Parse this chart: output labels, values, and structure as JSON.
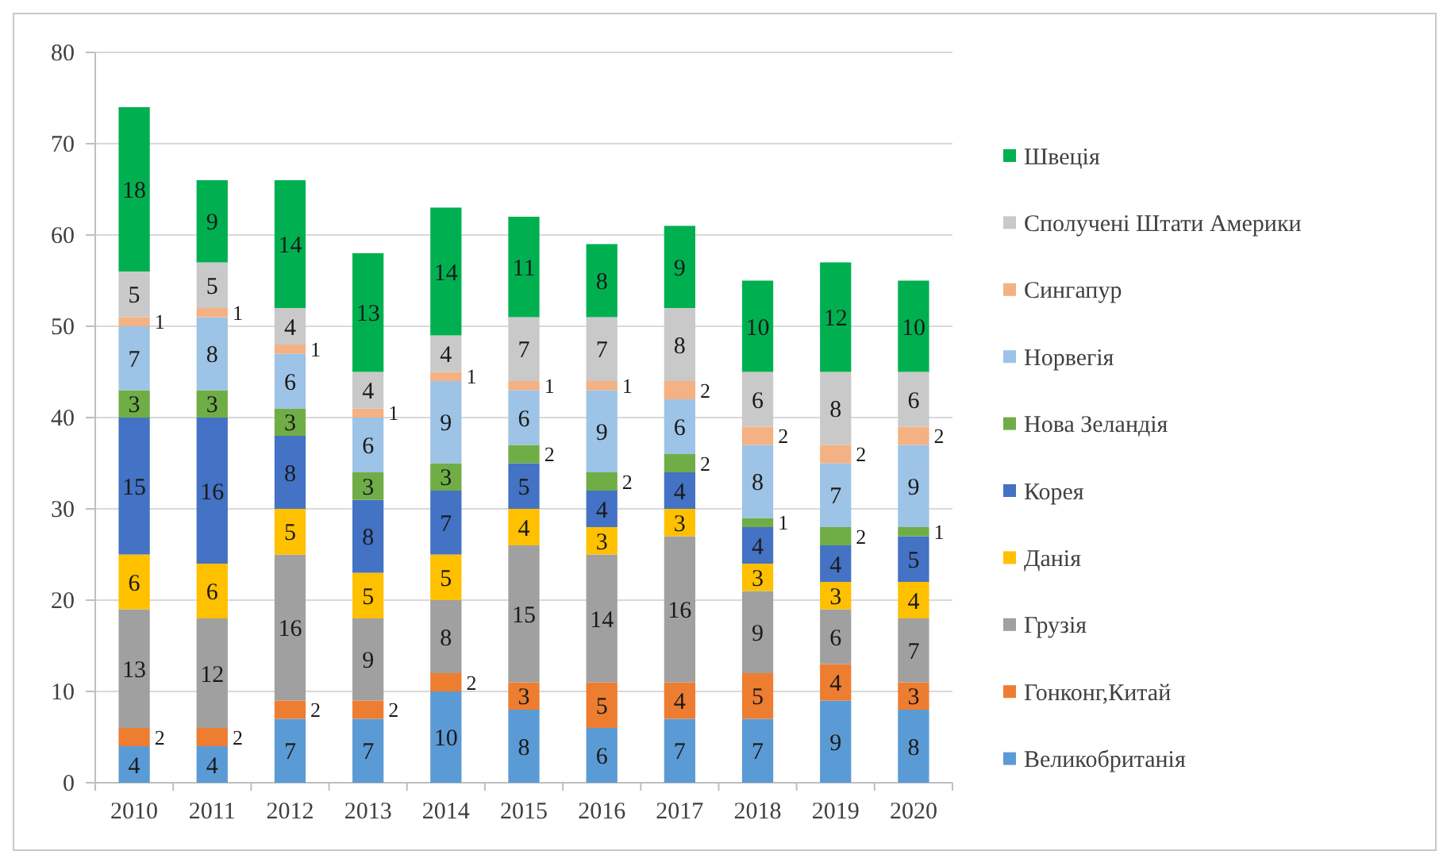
{
  "chart_data": {
    "type": "bar",
    "stacked": true,
    "categories": [
      "2010",
      "2011",
      "2012",
      "2013",
      "2014",
      "2015",
      "2016",
      "2017",
      "2018",
      "2019",
      "2020"
    ],
    "series": [
      {
        "name": "Великобританія",
        "color": "#5b9bd5",
        "values": [
          4,
          4,
          7,
          7,
          10,
          8,
          6,
          7,
          7,
          9,
          8
        ]
      },
      {
        "name": "Гонконг,Китай",
        "color": "#ed7d31",
        "values": [
          2,
          2,
          2,
          2,
          2,
          3,
          5,
          4,
          5,
          4,
          3
        ]
      },
      {
        "name": "Грузія",
        "color": "#a0a0a0",
        "values": [
          13,
          12,
          16,
          9,
          8,
          15,
          14,
          16,
          9,
          6,
          7
        ]
      },
      {
        "name": "Данія",
        "color": "#ffc000",
        "values": [
          6,
          6,
          5,
          5,
          5,
          4,
          3,
          3,
          3,
          3,
          4
        ]
      },
      {
        "name": "Корея",
        "color": "#4472c4",
        "values": [
          15,
          16,
          8,
          8,
          7,
          5,
          4,
          4,
          4,
          4,
          5
        ]
      },
      {
        "name": "Нова Зеландія",
        "color": "#70ad47",
        "values": [
          3,
          3,
          3,
          3,
          3,
          2,
          2,
          2,
          1,
          2,
          1
        ]
      },
      {
        "name": "Норвегія",
        "color": "#9dc3e6",
        "values": [
          7,
          8,
          6,
          6,
          9,
          6,
          9,
          6,
          8,
          7,
          9
        ]
      },
      {
        "name": "Сингапур",
        "color": "#f4b183",
        "values": [
          1,
          1,
          1,
          1,
          1,
          1,
          1,
          2,
          2,
          2,
          2
        ]
      },
      {
        "name": "Сполучені Штати Америки",
        "color": "#c9c9c9",
        "values": [
          5,
          5,
          4,
          4,
          4,
          7,
          7,
          8,
          6,
          8,
          6
        ]
      },
      {
        "name": "Швеція",
        "color": "#00b050",
        "values": [
          18,
          9,
          14,
          13,
          14,
          11,
          8,
          9,
          10,
          12,
          10
        ]
      }
    ],
    "ylim": [
      0,
      80
    ],
    "yticks": [
      0,
      10,
      20,
      30,
      40,
      50,
      60,
      70,
      80
    ],
    "grid": "y",
    "legend": "right",
    "data_labels": true
  }
}
